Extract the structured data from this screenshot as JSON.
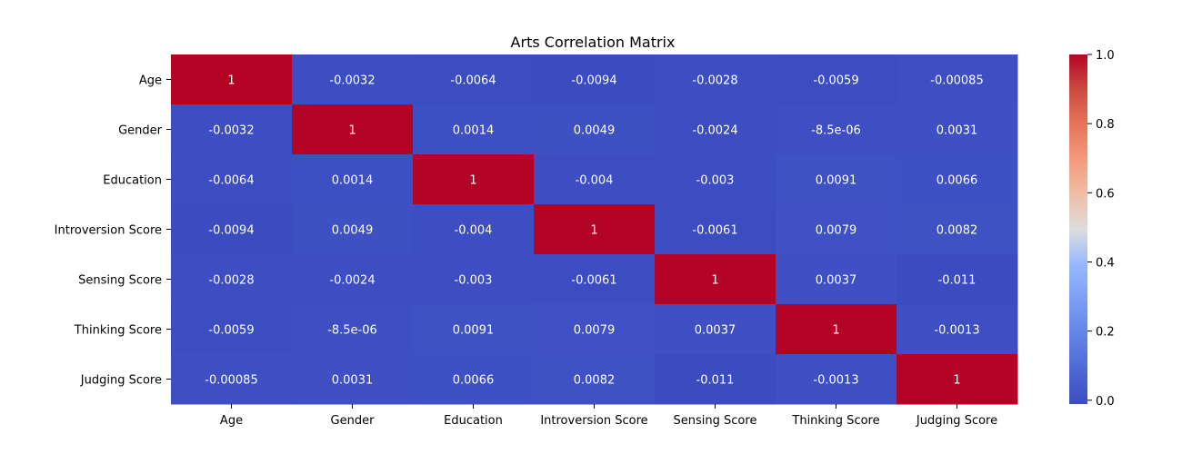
{
  "chart_data": {
    "type": "heatmap",
    "title": "Arts Correlation Matrix",
    "xlabel": "",
    "ylabel": "",
    "x_categories": [
      "Age",
      "Gender",
      "Education",
      "Introversion Score",
      "Sensing Score",
      "Thinking Score",
      "Judging Score"
    ],
    "y_categories": [
      "Age",
      "Gender",
      "Education",
      "Introversion Score",
      "Sensing Score",
      "Thinking Score",
      "Judging Score"
    ],
    "values": [
      [
        1,
        -0.0032,
        -0.0064,
        -0.0094,
        -0.0028,
        -0.0059,
        -0.00085
      ],
      [
        -0.0032,
        1,
        0.0014,
        0.0049,
        -0.0024,
        -8.5e-06,
        0.0031
      ],
      [
        -0.0064,
        0.0014,
        1,
        -0.004,
        -0.003,
        0.0091,
        0.0066
      ],
      [
        -0.0094,
        0.0049,
        -0.004,
        1,
        -0.0061,
        0.0079,
        0.0082
      ],
      [
        -0.0028,
        -0.0024,
        -0.003,
        -0.0061,
        1,
        0.0037,
        -0.011
      ],
      [
        -0.0059,
        -8.5e-06,
        0.0091,
        0.0079,
        0.0037,
        1,
        -0.0013
      ],
      [
        -0.00085,
        0.0031,
        0.0066,
        0.0082,
        -0.011,
        -0.0013,
        1
      ]
    ],
    "annotations": [
      [
        "1",
        "-0.0032",
        "-0.0064",
        "-0.0094",
        "-0.0028",
        "-0.0059",
        "-0.00085"
      ],
      [
        "-0.0032",
        "1",
        "0.0014",
        "0.0049",
        "-0.0024",
        "-8.5e-06",
        "0.0031"
      ],
      [
        "-0.0064",
        "0.0014",
        "1",
        "-0.004",
        "-0.003",
        "0.0091",
        "0.0066"
      ],
      [
        "-0.0094",
        "0.0049",
        "-0.004",
        "1",
        "-0.0061",
        "0.0079",
        "0.0082"
      ],
      [
        "-0.0028",
        "-0.0024",
        "-0.003",
        "-0.0061",
        "1",
        "0.0037",
        "-0.011"
      ],
      [
        "-0.0059",
        "-8.5e-06",
        "0.0091",
        "0.0079",
        "0.0037",
        "1",
        "-0.0013"
      ],
      [
        "-0.00085",
        "0.0031",
        "0.0066",
        "0.0082",
        "-0.011",
        "-0.0013",
        "1"
      ]
    ],
    "colormap": "coolwarm",
    "vmin": -0.011,
    "vmax": 1.0,
    "colorbar_ticks": [
      "0.0",
      "0.2",
      "0.4",
      "0.6",
      "0.8",
      "1.0"
    ],
    "colorbar_tick_values": [
      0.0,
      0.2,
      0.4,
      0.6,
      0.8,
      1.0
    ],
    "grid": false,
    "legend": "colorbar-right"
  }
}
